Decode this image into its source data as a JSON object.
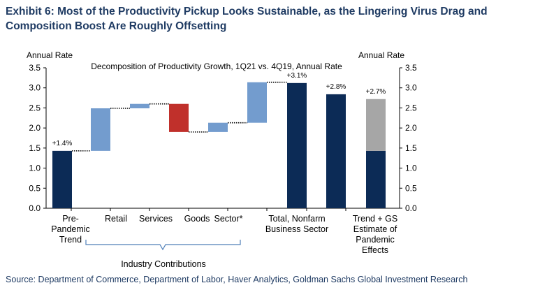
{
  "exhibit": {
    "title": "Exhibit 6: Most of the Productivity Pickup Looks Sustainable, as the Lingering Virus Drag and Composition Boost Are Roughly Offsetting",
    "source": "Source: Department of Commerce, Department of Labor, Haver Analytics, Goldman Sachs Global Investment Research"
  },
  "colors": {
    "navy": "#0c2b56",
    "light_blue": "#739cce",
    "red": "#c0302b",
    "gray": "#a6a6a6"
  },
  "chart_data": {
    "type": "bar",
    "subtype": "waterfall",
    "title": "Decomposition of Productivity Growth, 1Q21 vs. 4Q19, Annual Rate",
    "ylabel_left": "Annual Rate",
    "ylabel_right": "Annual Rate",
    "ylim": [
      0,
      3.5
    ],
    "yticks": [
      "0.0",
      "0.5",
      "1.0",
      "1.5",
      "2.0",
      "2.5",
      "3.0",
      "3.5"
    ],
    "bars": [
      {
        "name": "Pre-Pandemic Trend",
        "start": 0,
        "end": 1.43,
        "color": "navy",
        "label": "+1.4%"
      },
      {
        "name": "Retail contribution",
        "start": 1.43,
        "end": 2.49,
        "color": "light_blue"
      },
      {
        "name": "Services contribution",
        "start": 2.49,
        "end": 2.6,
        "color": "light_blue"
      },
      {
        "name": "Services drag",
        "start": 2.6,
        "end": 1.9,
        "color": "red"
      },
      {
        "name": "Goods contribution",
        "start": 1.9,
        "end": 2.13,
        "color": "light_blue"
      },
      {
        "name": "Sector contribution",
        "start": 2.13,
        "end": 3.14,
        "color": "light_blue"
      },
      {
        "name": "Total, Nonfarm Business Sector",
        "start": 0,
        "end": 3.12,
        "color": "navy",
        "label": "+3.1%"
      },
      {
        "name": "Total, Nonfarm Business Sector (2)",
        "start": 0,
        "end": 2.84,
        "color": "navy",
        "label": "+2.8%"
      },
      {
        "name": "Trend + GS Estimate (trend)",
        "start": 0,
        "end": 1.43,
        "color": "navy",
        "label": "+2.7%"
      },
      {
        "name": "Trend + GS Estimate (pandemic)",
        "start": 1.43,
        "end": 2.72,
        "color": "gray"
      }
    ],
    "connectors": [
      1.43,
      2.49,
      2.6,
      1.9,
      2.13,
      3.14
    ],
    "category_labels": [
      "Pre-\nPandemic\nTrend",
      "Retail",
      "Services",
      "Goods",
      "Sector*",
      "Total, Nonfarm\nBusiness Sector",
      "Trend + GS\nEstimate of\nPandemic\nEffects"
    ],
    "group_label": "Industry Contributions"
  }
}
